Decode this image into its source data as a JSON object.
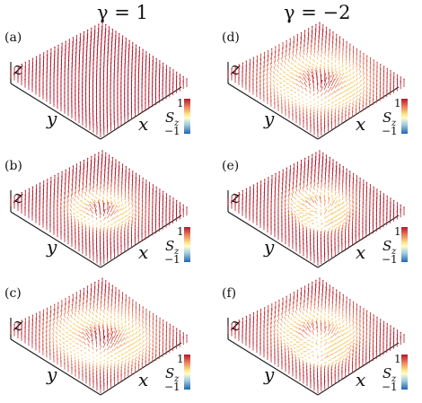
{
  "figure": {
    "columns": [
      {
        "title": "γ = 1"
      },
      {
        "title": "γ = −2"
      }
    ],
    "panels": [
      {
        "label": "(a)",
        "column": 0,
        "row": 0,
        "texture": "uniform"
      },
      {
        "label": "(b)",
        "column": 0,
        "row": 1,
        "texture": "single"
      },
      {
        "label": "(c)",
        "column": 0,
        "row": 2,
        "texture": "single-wide"
      },
      {
        "label": "(d)",
        "column": 1,
        "row": 0,
        "texture": "single-wide"
      },
      {
        "label": "(e)",
        "column": 1,
        "row": 1,
        "texture": "double"
      },
      {
        "label": "(f)",
        "column": 1,
        "row": 2,
        "texture": "double-wide"
      }
    ],
    "axes": {
      "x": "x",
      "y": "y",
      "z": "z"
    },
    "colorbar": {
      "symbol": "S",
      "subscript": "z",
      "max_label": "1",
      "min_label": "−1",
      "colors": [
        "#b2182b",
        "#ef8a62",
        "#fde68a",
        "#fffccf",
        "#9ecae1",
        "#2166ac"
      ]
    },
    "arrow_colors": {
      "up": "#b2182b",
      "down": "#2166ac"
    }
  }
}
